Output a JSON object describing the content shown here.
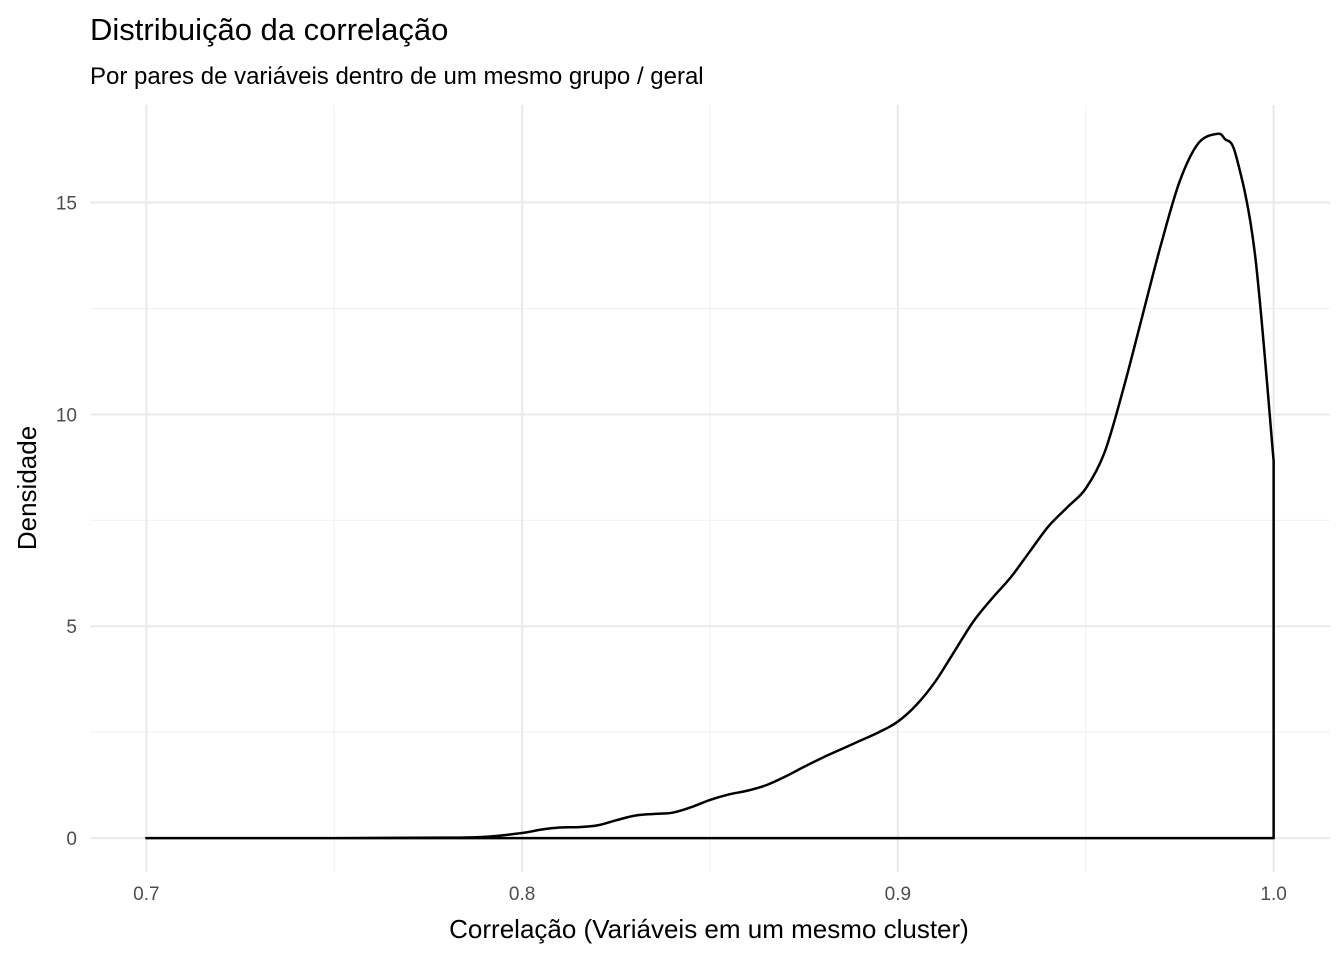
{
  "chart_data": {
    "type": "area",
    "title": "Distribuição da correlação",
    "subtitle": "Por pares de variáveis dentro de um mesmo grupo / geral",
    "xlabel": "Correlação (Variáveis em um mesmo cluster)",
    "ylabel": "Densidade",
    "xlim": [
      0.685,
      1.015
    ],
    "ylim": [
      -0.8,
      17.3
    ],
    "x_ticks": [
      0.7,
      0.8,
      0.9,
      1.0
    ],
    "x_tick_labels": [
      "0.7",
      "0.8",
      "0.9",
      "1.0"
    ],
    "x_minor_ticks": [
      0.75,
      0.85,
      0.95
    ],
    "y_ticks": [
      0,
      5,
      10,
      15
    ],
    "y_tick_labels": [
      "0",
      "5",
      "10",
      "15"
    ],
    "y_minor_ticks": [
      2.5,
      7.5,
      12.5
    ],
    "grid": true,
    "legend": "none",
    "line_color": "#000000",
    "fill": "none",
    "series": [
      {
        "x": [
          0.7,
          0.75,
          0.78,
          0.79,
          0.8,
          0.805,
          0.81,
          0.815,
          0.82,
          0.825,
          0.83,
          0.835,
          0.84,
          0.845,
          0.85,
          0.855,
          0.86,
          0.865,
          0.87,
          0.875,
          0.88,
          0.885,
          0.89,
          0.895,
          0.9,
          0.905,
          0.91,
          0.915,
          0.92,
          0.925,
          0.93,
          0.935,
          0.94,
          0.945,
          0.95,
          0.955,
          0.96,
          0.965,
          0.97,
          0.975,
          0.98,
          0.985,
          0.987,
          0.99,
          0.995,
          1.0,
          1.0
        ],
        "y": [
          0,
          0,
          0.01,
          0.03,
          0.12,
          0.2,
          0.25,
          0.26,
          0.3,
          0.42,
          0.53,
          0.57,
          0.6,
          0.73,
          0.9,
          1.03,
          1.12,
          1.25,
          1.45,
          1.68,
          1.9,
          2.1,
          2.3,
          2.5,
          2.75,
          3.15,
          3.7,
          4.4,
          5.1,
          5.65,
          6.15,
          6.75,
          7.35,
          7.8,
          8.25,
          9.1,
          10.6,
          12.3,
          14.0,
          15.5,
          16.4,
          16.62,
          16.5,
          16.1,
          13.8,
          8.9,
          0
        ]
      }
    ]
  }
}
